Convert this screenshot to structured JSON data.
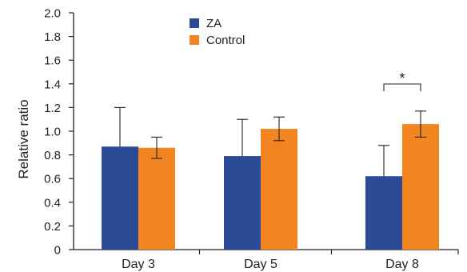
{
  "chart_data": {
    "type": "bar",
    "categories": [
      "Day 3",
      "Day 5",
      "Day 8"
    ],
    "series": [
      {
        "name": "ZA",
        "color": "#2c4b96",
        "values": [
          0.87,
          0.79,
          0.62
        ],
        "error": [
          0.33,
          0.31,
          0.26
        ]
      },
      {
        "name": "Control",
        "color": "#f2851f",
        "values": [
          0.86,
          1.02,
          1.06
        ],
        "error": [
          0.09,
          0.1,
          0.11
        ]
      }
    ],
    "ylabel": "Relative ratio",
    "xlabel": "",
    "ylim": [
      0,
      2.0
    ],
    "yticks": [
      "0",
      "0.2",
      "0.4",
      "0.6",
      "0.8",
      "1.0",
      "1.2",
      "1.4",
      "1.6",
      "1.8",
      "2.0"
    ],
    "grid": false,
    "legend_position": "top",
    "annotations": [
      {
        "text": "*",
        "category": "Day 8"
      }
    ]
  }
}
